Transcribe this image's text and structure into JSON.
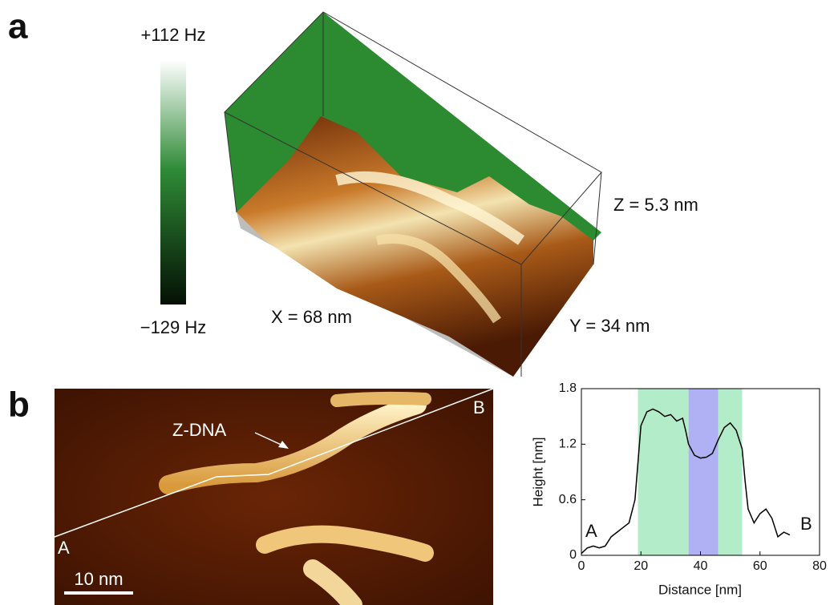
{
  "panel_a": {
    "label": "a",
    "colorbar_max": "+112 Hz",
    "colorbar_min": "−129 Hz",
    "z_size": "Z = 5.3 nm",
    "x_size": "X = 68 nm",
    "y_size": "Y = 34 nm"
  },
  "panel_b": {
    "label": "b",
    "annotation": "Z-DNA",
    "point_a": "A",
    "point_b": "B",
    "scale_bar": "10 nm"
  },
  "chart_data": {
    "type": "line",
    "xlabel": "Distance [nm]",
    "ylabel": "Height [nm]",
    "xlim": [
      0,
      80
    ],
    "ylim": [
      0,
      1.8
    ],
    "xticks": [
      0,
      20,
      40,
      60,
      80
    ],
    "yticks": [
      0,
      0.6,
      1.2,
      1.8
    ],
    "annotations": [
      "A",
      "B"
    ],
    "spans": [
      {
        "x0": 19,
        "x1": 36,
        "color": "#b3ecc8"
      },
      {
        "x0": 36,
        "x1": 46,
        "color": "#b0b0f4"
      },
      {
        "x0": 46,
        "x1": 54,
        "color": "#b3ecc8"
      }
    ],
    "x": [
      0,
      2,
      4,
      6,
      8,
      10,
      12,
      14,
      16,
      18,
      19,
      20,
      22,
      24,
      26,
      28,
      30,
      32,
      34,
      35,
      36,
      38,
      40,
      42,
      44,
      46,
      48,
      50,
      52,
      54,
      55,
      56,
      58,
      60,
      62,
      64,
      66,
      68,
      70
    ],
    "series": [
      {
        "color": "#000000",
        "values": [
          0.02,
          0.08,
          0.1,
          0.08,
          0.1,
          0.2,
          0.25,
          0.3,
          0.35,
          0.6,
          1.0,
          1.4,
          1.55,
          1.58,
          1.55,
          1.5,
          1.52,
          1.45,
          1.48,
          1.35,
          1.2,
          1.08,
          1.05,
          1.06,
          1.1,
          1.25,
          1.38,
          1.43,
          1.35,
          1.15,
          0.8,
          0.5,
          0.35,
          0.45,
          0.5,
          0.4,
          0.2,
          0.25,
          0.22
        ]
      }
    ]
  }
}
